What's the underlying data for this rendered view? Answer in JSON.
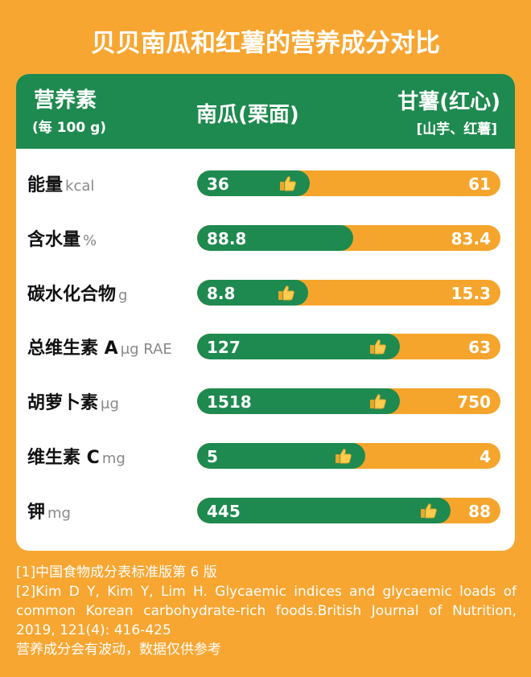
{
  "title": "贝贝南瓜和红薯的营养成分对比",
  "header": {
    "col1": "营养素",
    "col1_sub": "(每 100 g)",
    "col2": "南瓜(栗面)",
    "col3": "甘薯(红心)",
    "col3_sub": "[山芋、红薯]"
  },
  "rows": [
    {
      "name": "能量",
      "unit": "kcal",
      "pumpkin": 36,
      "sweet_potato": 61,
      "thumbs_up": true
    },
    {
      "name": "含水量",
      "unit": "%",
      "pumpkin": 88.8,
      "sweet_potato": 83.4,
      "thumbs_up": false
    },
    {
      "name": "碳水化合物",
      "unit": "g",
      "pumpkin": 8.8,
      "sweet_potato": 15.3,
      "thumbs_up": true
    },
    {
      "name": "总维生素 A",
      "unit": "μg RAE",
      "pumpkin": 127,
      "sweet_potato": 63,
      "thumbs_up": true
    },
    {
      "name": "胡萝卜素",
      "unit": "μg",
      "pumpkin": 1518,
      "sweet_potato": 750,
      "thumbs_up": true
    },
    {
      "name": "维生素 C",
      "unit": "mg",
      "pumpkin": 5,
      "sweet_potato": 4,
      "thumbs_up": true
    },
    {
      "name": "钾",
      "unit": "mg",
      "pumpkin": 445,
      "sweet_potato": 88,
      "thumbs_up": true
    }
  ],
  "colors": {
    "pumpkin": "#1f8a4f",
    "sweet_potato": "#f6a52c"
  },
  "footer": [
    "[1]中国食物成分表标准版第 6 版",
    "[2]Kim D Y, Kim Y, Lim H. Glycaemic indices and glycaemic loads of common Korean carbohydrate-rich foods.British Journal of Nutrition, 2019, 121(4): 416-425",
    "营养成分会有波动，数据仅供参考"
  ]
}
